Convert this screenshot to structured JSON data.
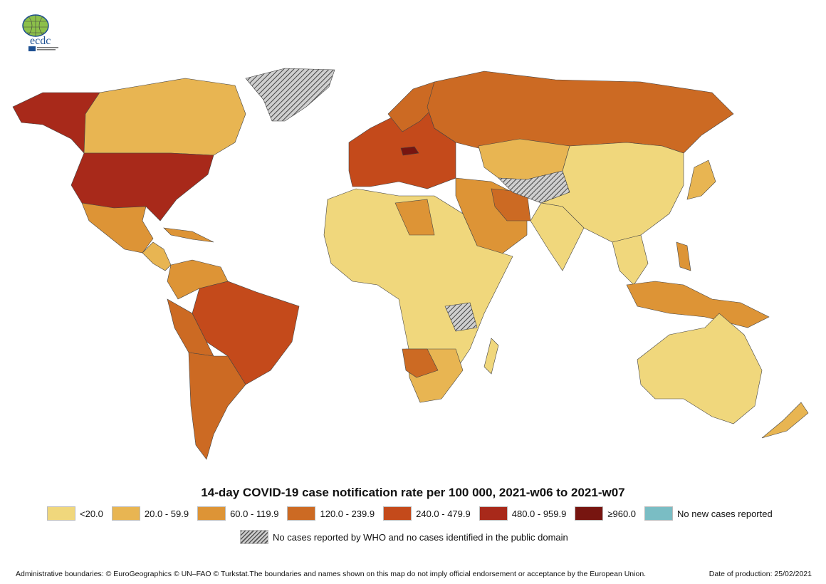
{
  "logo": {
    "text": "ecdc"
  },
  "colors": {
    "c1": "#F0D77C",
    "c2": "#E8B552",
    "c3": "#DD9436",
    "c4": "#CC6A23",
    "c5": "#C44A1B",
    "c6": "#A8291A",
    "c7": "#771510",
    "c8": "#7ABDC4"
  },
  "legend": {
    "title": "14-day COVID-19 case notification rate per 100 000, 2021-w06 to 2021-w07",
    "items": [
      {
        "label": "<20.0",
        "color": "#F0D77C"
      },
      {
        "label": "20.0 - 59.9",
        "color": "#E8B552"
      },
      {
        "label": "60.0 - 119.9",
        "color": "#DD9436"
      },
      {
        "label": "120.0 - 239.9",
        "color": "#CC6A23"
      },
      {
        "label": "240.0 - 479.9",
        "color": "#C44A1B"
      },
      {
        "label": "480.0 - 959.9",
        "color": "#A8291A"
      },
      {
        "label": "≥960.0",
        "color": "#771510"
      },
      {
        "label": "No new cases reported",
        "color": "#7ABDC4"
      }
    ],
    "no_data_label": "No cases reported by WHO and no cases identified in the public domain"
  },
  "footer": {
    "disclaimer": "Administrative boundaries: © EuroGeographics © UN–FAO © Turkstat.The boundaries and names shown on this map do not imply official endorsement or acceptance by the European Union.",
    "date": "Date of production: 25/02/2021"
  }
}
